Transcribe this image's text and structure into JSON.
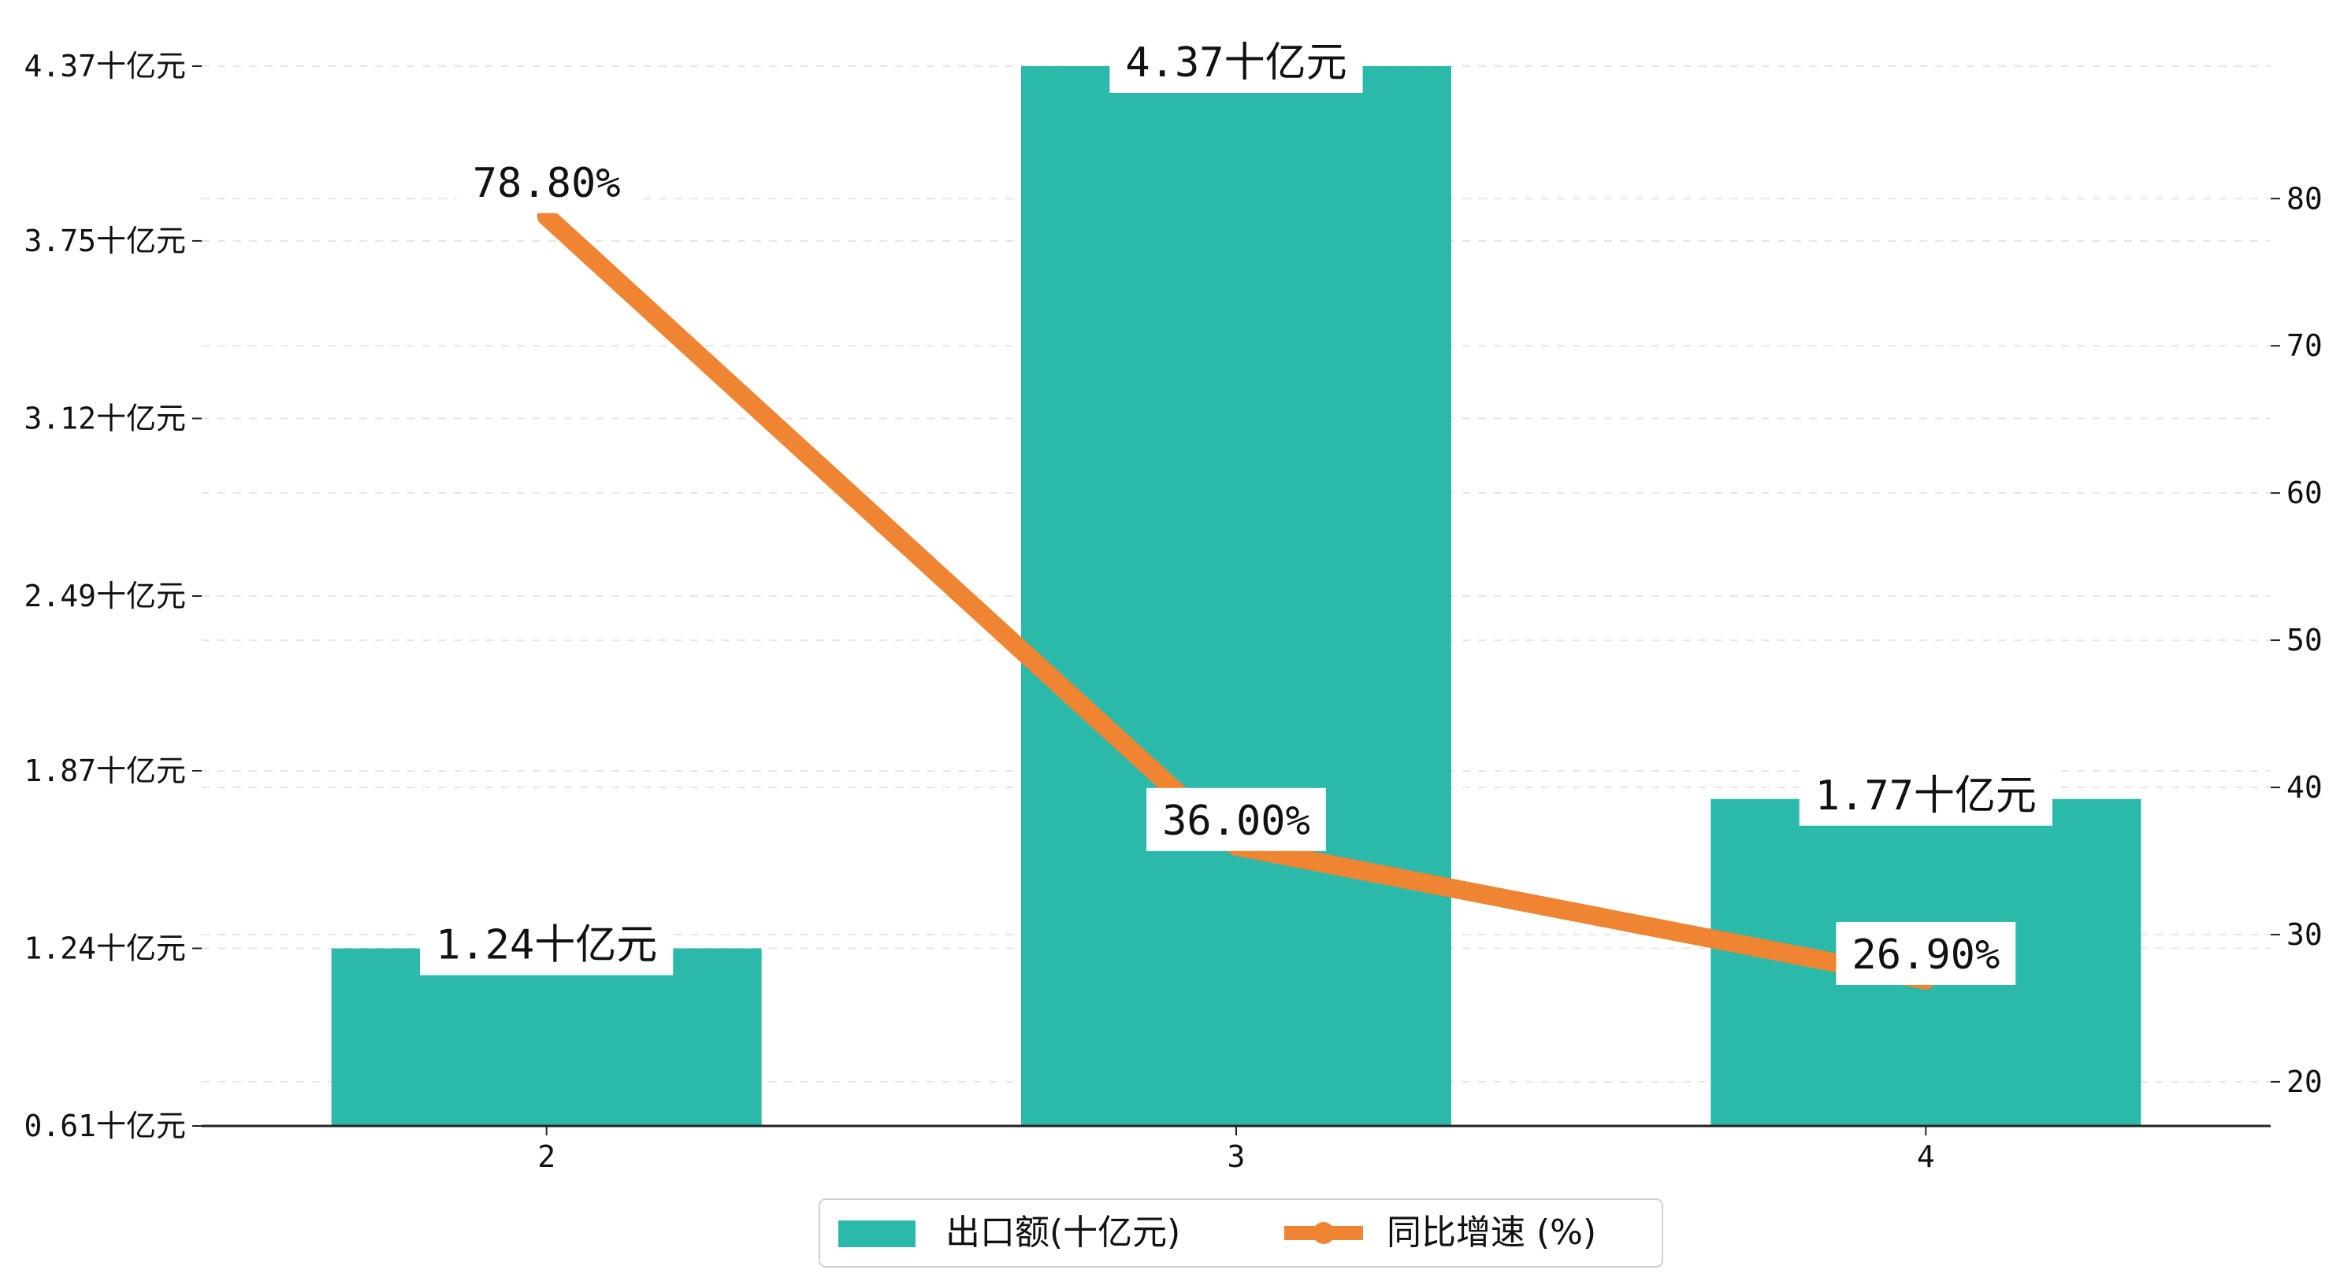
{
  "chart_data": {
    "type": "bar+line",
    "title": "",
    "categories": [
      "2",
      "3",
      "4"
    ],
    "series": [
      {
        "name": "出口额(十亿元)",
        "type": "bar",
        "axis": "left",
        "values": [
          1.24,
          4.37,
          1.77
        ],
        "labels": [
          "1.24十亿元",
          "4.37十亿元",
          "1.77十亿元"
        ]
      },
      {
        "name": "同比增速 (%)",
        "type": "line",
        "axis": "right",
        "values": [
          78.8,
          36.0,
          26.9
        ],
        "labels": [
          "78.80%",
          "36.00%",
          "26.90%"
        ]
      }
    ],
    "left_axis": {
      "ticks": [
        0.61,
        1.24,
        1.87,
        2.49,
        3.12,
        3.75,
        4.37
      ],
      "tick_labels": [
        "0.61十亿元",
        "1.24十亿元",
        "1.87十亿元",
        "2.49十亿元",
        "3.12十亿元",
        "3.75十亿元",
        "4.37十亿元"
      ],
      "ylim": [
        0.61,
        4.37
      ]
    },
    "right_axis": {
      "ticks": [
        20,
        30,
        40,
        50,
        60,
        70,
        80
      ],
      "tick_labels": [
        "20",
        "30",
        "40",
        "50",
        "60",
        "70",
        "80"
      ],
      "ylim": [
        17,
        89
      ]
    },
    "grid": true,
    "legend_position": "bottom-center",
    "colors": {
      "bar": "#2bb9a9",
      "line": "#ef8433",
      "axis": "#222222",
      "grid": "#e7e7e7"
    }
  }
}
